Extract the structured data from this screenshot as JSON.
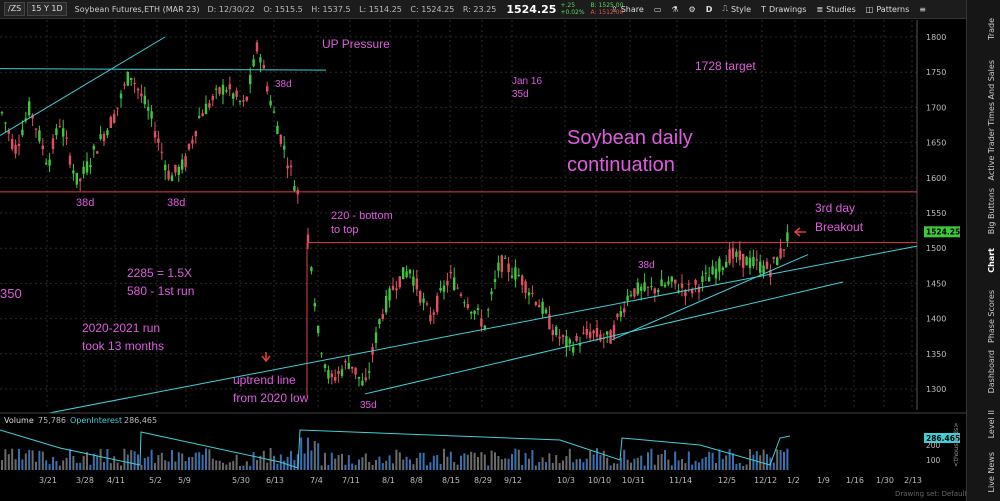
{
  "header": {
    "symbol": "/ZS",
    "period": "15 Y 1D",
    "instrument": "Soybean Futures,ETH (MAR 23)",
    "ohlc": {
      "date": "D: 12/30/22",
      "open": "O: 1515.5",
      "high": "H: 1537.5",
      "low": "L: 1514.25",
      "close": "C: 1524.25",
      "range": "R: 23.25"
    },
    "last": "1524.25",
    "change": "+.25",
    "change_pct": "+0.02%",
    "bid": "B: 1525.00",
    "ask": "A: 1512.00"
  },
  "toolbar": {
    "share": "Share",
    "style": "Style",
    "drawings": "Drawings",
    "studies": "Studies",
    "patterns": "Patterns",
    "period_btn": "D"
  },
  "sidebar": {
    "tabs": [
      "Trade",
      "Times And Sales",
      "Active Trader",
      "Big Buttons",
      "Chart",
      "Phase Scores",
      "Dashboard",
      "Level II",
      "Live News"
    ]
  },
  "chart_data": {
    "type": "candlestick",
    "y_ticks": [
      1800,
      1750,
      1700,
      1650,
      1600,
      1550,
      1500,
      1450,
      1400,
      1350,
      1300
    ],
    "x_ticks": [
      "3/21",
      "3/28",
      "4/11",
      "5/2",
      "5/9",
      "5/30",
      "6/13",
      "7/4",
      "7/11",
      "8/1",
      "8/8",
      "8/15",
      "8/29",
      "9/12",
      "10/3",
      "10/10",
      "10/31",
      "11/14",
      "12/5",
      "12/12",
      "1/2",
      "1/9",
      "1/16",
      "1/30",
      "2/13"
    ],
    "last_price_label": "1524.25",
    "horizontal_lines": [
      1580,
      1508
    ],
    "annotations": {
      "up_pressure": "UP Pressure",
      "jan16": "Jan 16",
      "jan16_sub": "35d",
      "target": "1728 target",
      "title_line1": "Soybean daily",
      "title_line2": "continuation",
      "d38_a": "38d",
      "d38_b": "38d",
      "d38_c": "38d",
      "d38_d": "38d",
      "d35": "35d",
      "b220_1": "220 - bottom",
      "b220_2": "to top",
      "breakout_1": "3rd day",
      "breakout_2": "Breakout",
      "r2285": "2285 = 1.5X",
      "r580": "580 - 1st run",
      "run_1": "2020-2021 run",
      "run_2": "took 13 months",
      "uptrend_1": "uptrend line",
      "uptrend_2": "from 2020 low",
      "left_num": "350"
    },
    "volume_panel": {
      "label_volume": "Volume",
      "volume_value": "75,786",
      "label_oi": "OpenInterest",
      "oi_value": "286,465",
      "oi_tag": "286.465",
      "y_ticks": [
        "200",
        "100"
      ],
      "units": "<thousands>"
    },
    "footer_note": "Drawing set: Default"
  }
}
